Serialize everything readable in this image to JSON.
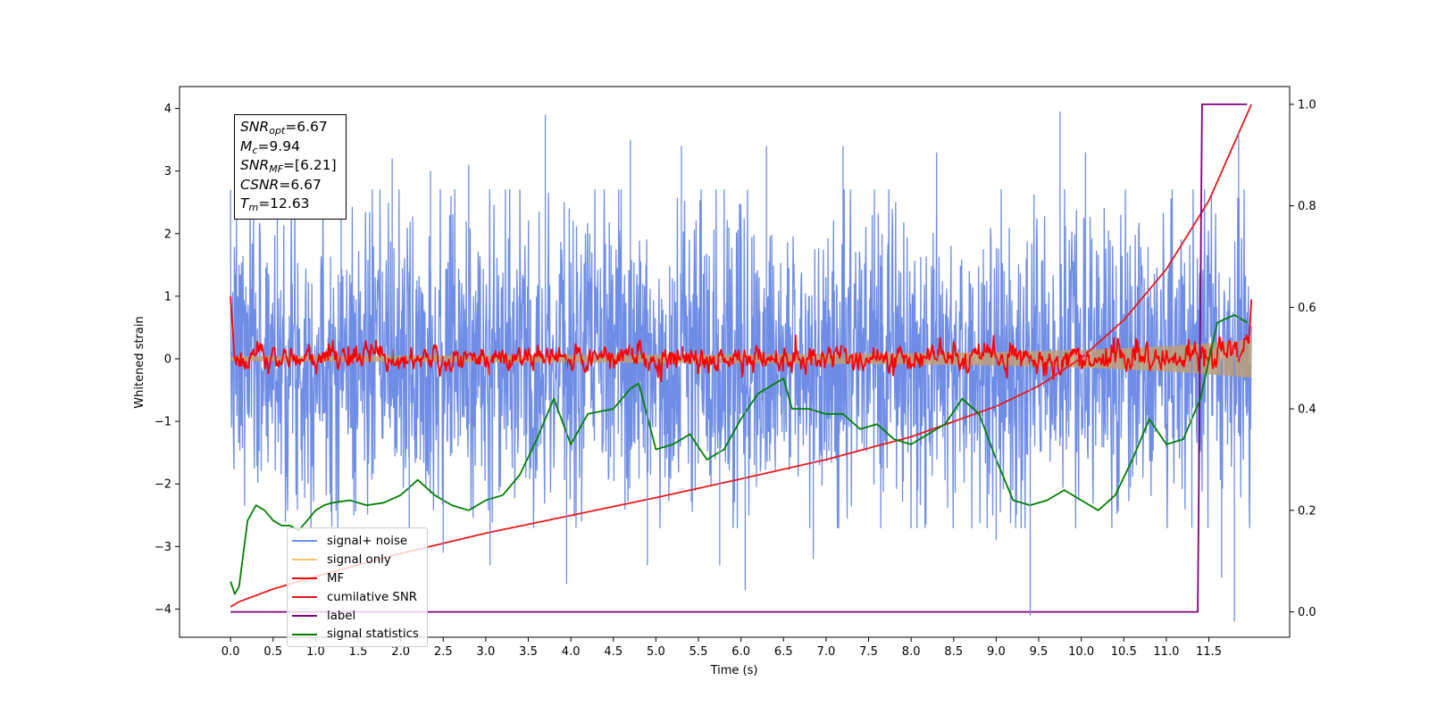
{
  "chart_data": {
    "type": "line",
    "xlabel": "Time (s)",
    "ylabel": "Whitened strain",
    "xlim": [
      -0.6,
      12.45
    ],
    "ylim_left": [
      -4.45,
      4.35
    ],
    "ylim_right": [
      -0.05,
      1.035
    ],
    "x_ticks": [
      0.0,
      0.5,
      1.0,
      1.5,
      2.0,
      2.5,
      3.0,
      3.5,
      4.0,
      4.5,
      5.0,
      5.5,
      6.0,
      6.5,
      7.0,
      7.5,
      8.0,
      8.5,
      9.0,
      9.5,
      10.0,
      10.5,
      11.0,
      11.5
    ],
    "x_tick_labels": [
      "0.0",
      "0.5",
      "1.0",
      "1.5",
      "2.0",
      "2.5",
      "3.0",
      "3.5",
      "4.0",
      "4.5",
      "5.0",
      "5.5",
      "6.0",
      "6.5",
      "7.0",
      "7.5",
      "8.0",
      "8.5",
      "9.0",
      "9.5",
      "10.0",
      "10.5",
      "11.0",
      "11.5"
    ],
    "y_left_ticks": [
      -4,
      -3,
      -2,
      -1,
      0,
      1,
      2,
      3,
      4
    ],
    "y_left_tick_labels": [
      "−4",
      "−3",
      "−2",
      "−1",
      "0",
      "1",
      "2",
      "3",
      "4"
    ],
    "y_right_ticks": [
      0.0,
      0.2,
      0.4,
      0.6,
      0.8,
      1.0
    ],
    "y_right_tick_labels": [
      "0.0",
      "0.2",
      "0.4",
      "0.6",
      "0.8",
      "1.0"
    ],
    "grid": false,
    "legend_position": "lower-left",
    "series": [
      {
        "name": "signal+ noise",
        "color": "#6f8de6",
        "axis": "left",
        "x_range": [
          0.0,
          12.0
        ],
        "typical_range": [
          -1.6,
          1.6
        ],
        "peaks": [
          {
            "x": 0.55,
            "y": 2.6
          },
          {
            "x": 1.3,
            "y": 3.5
          },
          {
            "x": 1.45,
            "y": -2.5
          },
          {
            "x": 1.9,
            "y": 3.2
          },
          {
            "x": 2.1,
            "y": -2.7
          },
          {
            "x": 2.35,
            "y": 3.0
          },
          {
            "x": 2.5,
            "y": -3.1
          },
          {
            "x": 2.8,
            "y": 3.1
          },
          {
            "x": 3.05,
            "y": -3.3
          },
          {
            "x": 3.7,
            "y": 3.9
          },
          {
            "x": 3.95,
            "y": -3.6
          },
          {
            "x": 4.7,
            "y": 3.5
          },
          {
            "x": 4.9,
            "y": -3.3
          },
          {
            "x": 5.3,
            "y": 3.4
          },
          {
            "x": 5.75,
            "y": -3.3
          },
          {
            "x": 6.05,
            "y": -3.7
          },
          {
            "x": 6.3,
            "y": 3.4
          },
          {
            "x": 6.85,
            "y": -3.2
          },
          {
            "x": 7.2,
            "y": 3.4
          },
          {
            "x": 8.3,
            "y": 3.3
          },
          {
            "x": 9.0,
            "y": -2.9
          },
          {
            "x": 9.4,
            "y": -4.1
          },
          {
            "x": 9.75,
            "y": 3.95
          },
          {
            "x": 10.05,
            "y": 3.3
          },
          {
            "x": 11.3,
            "y": -2.7
          },
          {
            "x": 11.65,
            "y": -3.5
          },
          {
            "x": 11.8,
            "y": -4.2
          },
          {
            "x": 11.85,
            "y": 3.6
          }
        ]
      },
      {
        "name": "signal only",
        "color": "#f5c56a",
        "axis": "left",
        "x": [
          0.0,
          2.0,
          4.0,
          6.0,
          8.0,
          9.0,
          10.0,
          10.5,
          11.0,
          11.5,
          12.0
        ],
        "envelope": [
          0.04,
          0.05,
          0.06,
          0.07,
          0.09,
          0.11,
          0.14,
          0.17,
          0.2,
          0.25,
          0.3
        ]
      },
      {
        "name": "MF",
        "color": "#ff0000",
        "axis": "left",
        "x": [
          0.0,
          0.1,
          0.3,
          0.6,
          1.0,
          1.5,
          2.0,
          3.0,
          4.0,
          5.0,
          6.0,
          7.0,
          8.0,
          9.0,
          10.0,
          11.0,
          11.5,
          12.0
        ],
        "y": [
          1.0,
          -0.1,
          0.0,
          0.05,
          0.0,
          0.3,
          0.0,
          0.05,
          0.0,
          0.1,
          0.0,
          0.05,
          0.0,
          0.1,
          0.0,
          0.05,
          0.1,
          0.95
        ]
      },
      {
        "name": "cumilative SNR",
        "color": "#e8191b",
        "axis": "right",
        "x": [
          0.0,
          0.1,
          0.5,
          1.0,
          2.0,
          3.0,
          4.0,
          5.0,
          6.0,
          7.0,
          8.0,
          9.0,
          9.5,
          10.0,
          10.5,
          11.0,
          11.5,
          12.0
        ],
        "y": [
          0.01,
          0.02,
          0.045,
          0.07,
          0.115,
          0.155,
          0.19,
          0.225,
          0.262,
          0.3,
          0.345,
          0.405,
          0.445,
          0.5,
          0.575,
          0.675,
          0.81,
          1.0
        ]
      },
      {
        "name": "label",
        "color": "#800080",
        "axis": "right",
        "x": [
          0.0,
          11.37,
          11.42,
          11.95
        ],
        "y": [
          0.0,
          0.0,
          1.0,
          1.0
        ]
      },
      {
        "name": "signal statistics",
        "color": "#008000",
        "axis": "right",
        "x": [
          0.0,
          0.05,
          0.1,
          0.2,
          0.3,
          0.4,
          0.5,
          0.6,
          0.7,
          0.8,
          0.9,
          1.0,
          1.1,
          1.2,
          1.4,
          1.6,
          1.8,
          2.0,
          2.2,
          2.4,
          2.6,
          2.8,
          3.0,
          3.2,
          3.4,
          3.6,
          3.8,
          4.0,
          4.2,
          4.5,
          4.7,
          4.8,
          5.0,
          5.2,
          5.4,
          5.6,
          5.8,
          6.0,
          6.2,
          6.5,
          6.6,
          6.8,
          7.0,
          7.2,
          7.4,
          7.6,
          7.8,
          8.0,
          8.2,
          8.4,
          8.6,
          8.8,
          9.0,
          9.2,
          9.4,
          9.6,
          9.8,
          10.0,
          10.2,
          10.4,
          10.6,
          10.8,
          11.0,
          11.2,
          11.4,
          11.6,
          11.8,
          11.95
        ],
        "y": [
          0.06,
          0.035,
          0.05,
          0.18,
          0.21,
          0.2,
          0.18,
          0.17,
          0.17,
          0.16,
          0.18,
          0.2,
          0.21,
          0.215,
          0.22,
          0.21,
          0.215,
          0.23,
          0.26,
          0.23,
          0.21,
          0.2,
          0.22,
          0.23,
          0.27,
          0.34,
          0.42,
          0.33,
          0.39,
          0.4,
          0.44,
          0.45,
          0.32,
          0.33,
          0.35,
          0.3,
          0.32,
          0.38,
          0.43,
          0.46,
          0.4,
          0.4,
          0.39,
          0.39,
          0.36,
          0.37,
          0.34,
          0.33,
          0.35,
          0.37,
          0.42,
          0.39,
          0.3,
          0.22,
          0.21,
          0.22,
          0.24,
          0.22,
          0.2,
          0.23,
          0.3,
          0.38,
          0.33,
          0.34,
          0.42,
          0.57,
          0.585,
          0.57
        ]
      }
    ]
  },
  "info_box": {
    "snr_opt": {
      "sym": "SNR",
      "sub": "opt",
      "value": "=6.67"
    },
    "mc": {
      "sym": "M",
      "sub": "c",
      "value": "=9.94"
    },
    "snr_mf": {
      "sym": "SNR",
      "sub": "MF",
      "value": "=[6.21]"
    },
    "csnr": {
      "sym": "CSNR",
      "value": "=6.67"
    },
    "tm": {
      "sym": "T",
      "sub": "m",
      "value": "=12.63"
    }
  }
}
